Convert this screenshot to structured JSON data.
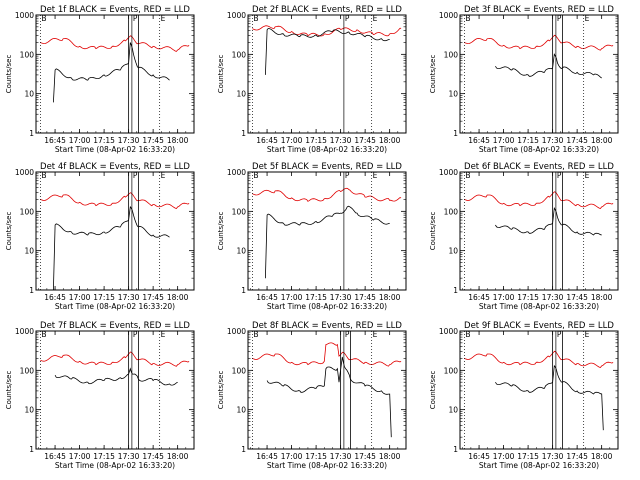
{
  "figure": {
    "ylabel": "Counts/sec",
    "xlabel": "Start Time (08-Apr-02 16:33:20)",
    "series_colors": {
      "events": "#000000",
      "lld": "#e00000"
    },
    "marker_labels": [
      "B",
      "P",
      "E"
    ]
  },
  "chart_data": [
    {
      "type": "line",
      "title": "Det 1f BLACK = Events, RED = LLD",
      "xlabel": "Start Time (08-Apr-02 16:33:20)",
      "ylabel": "Counts/sec",
      "xlim": [
        "16:33:20",
        "18:10:00"
      ],
      "ylim": [
        1,
        1000
      ],
      "yscale": "log",
      "xticks": [
        "16:45",
        "17:00",
        "17:15",
        "17:30",
        "17:45",
        "18:00"
      ],
      "yticks": [
        "1",
        "10",
        "100",
        "1000"
      ],
      "markers": [
        {
          "label": "B",
          "x": "16:36",
          "style": "dotted"
        },
        {
          "label": "P",
          "x": "17:32",
          "style": "solid"
        },
        {
          "label": "E",
          "x": "17:49",
          "style": "dotted"
        }
      ],
      "band": [
        "17:30",
        "17:36"
      ],
      "series": [
        {
          "color": "#e00000",
          "x": [
            "16:36",
            "16:50",
            "17:00",
            "17:10",
            "17:20",
            "17:28",
            "17:32",
            "17:36",
            "17:45",
            "18:00",
            "18:07"
          ],
          "values": [
            200,
            250,
            160,
            140,
            160,
            220,
            280,
            190,
            160,
            130,
            170
          ]
        },
        {
          "color": "#000000",
          "x": [
            "16:44",
            "16:45",
            "16:55",
            "17:05",
            "17:15",
            "17:25",
            "17:30",
            "17:31",
            "17:33",
            "17:36",
            "17:45",
            "17:55"
          ],
          "values": [
            6,
            40,
            25,
            22,
            30,
            40,
            60,
            200,
            100,
            45,
            30,
            22
          ]
        }
      ]
    },
    {
      "type": "line",
      "title": "Det 2f BLACK = Events, RED = LLD",
      "xlabel": "Start Time (08-Apr-02 16:33:20)",
      "ylabel": "Counts/sec",
      "xlim": [
        "16:33:20",
        "18:10:00"
      ],
      "ylim": [
        1,
        1000
      ],
      "yscale": "log",
      "xticks": [
        "16:45",
        "17:00",
        "17:15",
        "17:30",
        "17:45",
        "18:00"
      ],
      "yticks": [
        "1",
        "10",
        "100",
        "1000"
      ],
      "markers": [
        {
          "label": "B",
          "x": "16:36",
          "style": "dotted"
        },
        {
          "label": "P",
          "x": "17:32",
          "style": "solid"
        },
        {
          "label": "E",
          "x": "17:49",
          "style": "dotted"
        }
      ],
      "band": null,
      "series": [
        {
          "color": "#e00000",
          "x": [
            "16:36",
            "16:50",
            "17:00",
            "17:10",
            "17:20",
            "17:30",
            "17:40",
            "17:50",
            "18:00",
            "18:07"
          ],
          "values": [
            450,
            500,
            380,
            300,
            330,
            430,
            420,
            320,
            330,
            460
          ]
        },
        {
          "color": "#000000",
          "x": [
            "16:44",
            "16:45",
            "16:55",
            "17:05",
            "17:15",
            "17:25",
            "17:35",
            "17:45",
            "17:55",
            "18:00"
          ],
          "values": [
            30,
            420,
            330,
            280,
            310,
            380,
            370,
            280,
            250,
            240
          ]
        }
      ]
    },
    {
      "type": "line",
      "title": "Det 3f BLACK = Events, RED = LLD",
      "xlabel": "Start Time (08-Apr-02 16:33:20)",
      "ylabel": "Counts/sec",
      "xlim": [
        "16:33:20",
        "18:10:00"
      ],
      "ylim": [
        1,
        1000
      ],
      "yscale": "log",
      "xticks": [
        "16:45",
        "17:00",
        "17:15",
        "17:30",
        "17:45",
        "18:00"
      ],
      "yticks": [
        "1",
        "10",
        "100",
        "1000"
      ],
      "markers": [
        {
          "label": "B",
          "x": "16:36",
          "style": "dotted"
        },
        {
          "label": "P",
          "x": "17:32",
          "style": "solid"
        },
        {
          "label": "E",
          "x": "17:49",
          "style": "dotted"
        }
      ],
      "band": [
        "17:30",
        "17:36"
      ],
      "series": [
        {
          "color": "#e00000",
          "x": [
            "16:36",
            "16:50",
            "17:00",
            "17:10",
            "17:20",
            "17:28",
            "17:32",
            "17:36",
            "17:45",
            "18:00",
            "18:07"
          ],
          "values": [
            200,
            250,
            170,
            140,
            160,
            220,
            290,
            200,
            160,
            140,
            170
          ]
        },
        {
          "color": "#000000",
          "x": [
            "16:55",
            "17:05",
            "17:15",
            "17:25",
            "17:30",
            "17:31",
            "17:33",
            "17:36",
            "17:45",
            "17:55",
            "18:00"
          ],
          "values": [
            50,
            40,
            30,
            35,
            45,
            100,
            60,
            45,
            35,
            30,
            25
          ]
        }
      ]
    },
    {
      "type": "line",
      "title": "Det 4f BLACK = Events, RED = LLD",
      "xlabel": "Start Time (08-Apr-02 16:33:20)",
      "ylabel": "Counts/sec",
      "xlim": [
        "16:33:20",
        "18:10:00"
      ],
      "ylim": [
        1,
        1000
      ],
      "yscale": "log",
      "xticks": [
        "16:45",
        "17:00",
        "17:15",
        "17:30",
        "17:45",
        "18:00"
      ],
      "yticks": [
        "1",
        "10",
        "100",
        "1000"
      ],
      "markers": [
        {
          "label": "B",
          "x": "16:36",
          "style": "dotted"
        },
        {
          "label": "P",
          "x": "17:32",
          "style": "solid"
        },
        {
          "label": "E",
          "x": "17:49",
          "style": "dotted"
        }
      ],
      "band": [
        "17:30",
        "17:36"
      ],
      "series": [
        {
          "color": "#e00000",
          "x": [
            "16:36",
            "16:50",
            "17:00",
            "17:10",
            "17:20",
            "17:28",
            "17:32",
            "17:36",
            "17:45",
            "18:00",
            "18:07"
          ],
          "values": [
            200,
            260,
            170,
            140,
            160,
            230,
            280,
            190,
            150,
            130,
            160
          ]
        },
        {
          "color": "#000000",
          "x": [
            "16:44",
            "16:45",
            "16:55",
            "17:05",
            "17:15",
            "17:25",
            "17:30",
            "17:31",
            "17:33",
            "17:36",
            "17:45",
            "17:55"
          ],
          "values": [
            1,
            45,
            30,
            25,
            30,
            40,
            60,
            130,
            80,
            40,
            25,
            22
          ]
        }
      ]
    },
    {
      "type": "line",
      "title": "Det 5f BLACK = Events, RED = LLD",
      "xlabel": "Start Time (08-Apr-02 16:33:20)",
      "ylabel": "Counts/sec",
      "xlim": [
        "16:33:20",
        "18:10:00"
      ],
      "ylim": [
        1,
        1000
      ],
      "yscale": "log",
      "xticks": [
        "16:45",
        "17:00",
        "17:15",
        "17:30",
        "17:45",
        "18:00"
      ],
      "yticks": [
        "1",
        "10",
        "100",
        "1000"
      ],
      "markers": [
        {
          "label": "B",
          "x": "16:36",
          "style": "dotted"
        },
        {
          "label": "P",
          "x": "17:32",
          "style": "solid"
        },
        {
          "label": "E",
          "x": "17:49",
          "style": "dotted"
        }
      ],
      "band": null,
      "series": [
        {
          "color": "#e00000",
          "x": [
            "16:36",
            "16:50",
            "17:00",
            "17:10",
            "17:20",
            "17:30",
            "17:35",
            "17:45",
            "18:00",
            "18:07"
          ],
          "values": [
            280,
            330,
            220,
            180,
            210,
            320,
            360,
            230,
            190,
            220
          ]
        },
        {
          "color": "#000000",
          "x": [
            "16:44",
            "16:45",
            "16:55",
            "17:05",
            "17:15",
            "17:25",
            "17:30",
            "17:34",
            "17:40",
            "17:50",
            "18:00"
          ],
          "values": [
            2,
            80,
            50,
            45,
            55,
            75,
            90,
            130,
            90,
            60,
            50
          ]
        }
      ]
    },
    {
      "type": "line",
      "title": "Det 6f BLACK = Events, RED = LLD",
      "xlabel": "Start Time (08-Apr-02 16:33:20)",
      "ylabel": "Counts/sec",
      "xlim": [
        "16:33:20",
        "18:10:00"
      ],
      "ylim": [
        1,
        1000
      ],
      "yscale": "log",
      "xticks": [
        "16:45",
        "17:00",
        "17:15",
        "17:30",
        "17:45",
        "18:00"
      ],
      "yticks": [
        "1",
        "10",
        "100",
        "1000"
      ],
      "markers": [
        {
          "label": "B",
          "x": "16:36",
          "style": "dotted"
        },
        {
          "label": "P",
          "x": "17:32",
          "style": "solid"
        },
        {
          "label": "E",
          "x": "17:49",
          "style": "dotted"
        }
      ],
      "band": [
        "17:30",
        "17:36"
      ],
      "series": [
        {
          "color": "#e00000",
          "x": [
            "16:36",
            "16:50",
            "17:00",
            "17:10",
            "17:20",
            "17:28",
            "17:32",
            "17:36",
            "17:45",
            "18:00",
            "18:07"
          ],
          "values": [
            200,
            260,
            160,
            140,
            160,
            230,
            300,
            190,
            150,
            130,
            160
          ]
        },
        {
          "color": "#000000",
          "x": [
            "16:55",
            "17:05",
            "17:15",
            "17:25",
            "17:30",
            "17:31",
            "17:33",
            "17:36",
            "17:45",
            "17:55",
            "18:00"
          ],
          "values": [
            45,
            35,
            30,
            35,
            50,
            120,
            70,
            45,
            30,
            25,
            25
          ]
        }
      ]
    },
    {
      "type": "line",
      "title": "Det 7f BLACK = Events, RED = LLD",
      "xlabel": "Start Time (08-Apr-02 16:33:20)",
      "ylabel": "Counts/sec",
      "xlim": [
        "16:33:20",
        "18:10:00"
      ],
      "ylim": [
        1,
        1000
      ],
      "yscale": "log",
      "xticks": [
        "16:45",
        "17:00",
        "17:15",
        "17:30",
        "17:45",
        "18:00"
      ],
      "yticks": [
        "1",
        "10",
        "100",
        "1000"
      ],
      "markers": [
        {
          "label": "B",
          "x": "16:36",
          "style": "dotted"
        },
        {
          "label": "P",
          "x": "17:32",
          "style": "solid"
        },
        {
          "label": "E",
          "x": "17:49",
          "style": "dotted"
        }
      ],
      "band": [
        "17:30",
        "17:36"
      ],
      "series": [
        {
          "color": "#e00000",
          "x": [
            "16:36",
            "16:50",
            "17:00",
            "17:10",
            "17:20",
            "17:28",
            "17:32",
            "17:36",
            "17:45",
            "18:00",
            "18:07"
          ],
          "values": [
            180,
            240,
            170,
            140,
            160,
            210,
            280,
            190,
            150,
            140,
            170
          ]
        },
        {
          "color": "#000000",
          "x": [
            "16:45",
            "16:55",
            "17:05",
            "17:15",
            "17:25",
            "17:30",
            "17:31",
            "17:33",
            "17:36",
            "17:45",
            "17:55",
            "18:00"
          ],
          "values": [
            75,
            60,
            50,
            55,
            65,
            80,
            110,
            80,
            60,
            55,
            45,
            50
          ]
        }
      ]
    },
    {
      "type": "line",
      "title": "Det 8f BLACK = Events, RED = LLD",
      "xlabel": "Start Time (08-Apr-02 16:33:20)",
      "ylabel": "Counts/sec",
      "xlim": [
        "16:33:20",
        "18:10:00"
      ],
      "ylim": [
        1,
        1000
      ],
      "yscale": "log",
      "xticks": [
        "16:45",
        "17:00",
        "17:15",
        "17:30",
        "17:45",
        "18:00"
      ],
      "yticks": [
        "1",
        "10",
        "100",
        "1000"
      ],
      "markers": [
        {
          "label": "B",
          "x": "16:36",
          "style": "dotted"
        },
        {
          "label": "P",
          "x": "17:32",
          "style": "solid"
        },
        {
          "label": "E",
          "x": "17:49",
          "style": "dotted"
        }
      ],
      "band": [
        "17:30",
        "17:36"
      ],
      "series": [
        {
          "color": "#e00000",
          "x": [
            "16:36",
            "16:50",
            "17:00",
            "17:10",
            "17:20",
            "17:21",
            "17:28",
            "17:29",
            "17:32",
            "17:36",
            "17:45",
            "18:00",
            "18:07"
          ],
          "values": [
            200,
            260,
            160,
            140,
            170,
            450,
            450,
            230,
            280,
            190,
            160,
            140,
            170
          ]
        },
        {
          "color": "#000000",
          "x": [
            "16:45",
            "16:55",
            "17:05",
            "17:15",
            "17:20",
            "17:21",
            "17:28",
            "17:29",
            "17:31",
            "17:33",
            "17:36",
            "17:45",
            "17:55",
            "18:00",
            "18:01"
          ],
          "values": [
            55,
            40,
            30,
            35,
            40,
            110,
            110,
            50,
            220,
            110,
            60,
            40,
            30,
            25,
            2
          ]
        }
      ]
    },
    {
      "type": "line",
      "title": "Det 9f BLACK = Events, RED = LLD",
      "xlabel": "Start Time (08-Apr-02 16:33:20)",
      "ylabel": "Counts/sec",
      "xlim": [
        "16:33:20",
        "18:10:00"
      ],
      "ylim": [
        1,
        1000
      ],
      "yscale": "log",
      "xticks": [
        "16:45",
        "17:00",
        "17:15",
        "17:30",
        "17:45",
        "18:00"
      ],
      "yticks": [
        "1",
        "10",
        "100",
        "1000"
      ],
      "markers": [
        {
          "label": "B",
          "x": "16:36",
          "style": "dotted"
        },
        {
          "label": "P",
          "x": "17:32",
          "style": "solid"
        },
        {
          "label": "E",
          "x": "17:49",
          "style": "dotted"
        }
      ],
      "band": [
        "17:30",
        "17:36"
      ],
      "series": [
        {
          "color": "#e00000",
          "x": [
            "16:36",
            "16:50",
            "17:00",
            "17:10",
            "17:20",
            "17:28",
            "17:32",
            "17:36",
            "17:45",
            "18:00",
            "18:07"
          ],
          "values": [
            200,
            260,
            160,
            140,
            160,
            220,
            290,
            190,
            150,
            130,
            160
          ]
        },
        {
          "color": "#000000",
          "x": [
            "16:55",
            "17:05",
            "17:15",
            "17:25",
            "17:30",
            "17:31",
            "17:33",
            "17:36",
            "17:45",
            "17:55",
            "18:00",
            "18:01"
          ],
          "values": [
            50,
            40,
            30,
            35,
            50,
            130,
            80,
            50,
            30,
            25,
            25,
            3
          ]
        }
      ]
    }
  ]
}
